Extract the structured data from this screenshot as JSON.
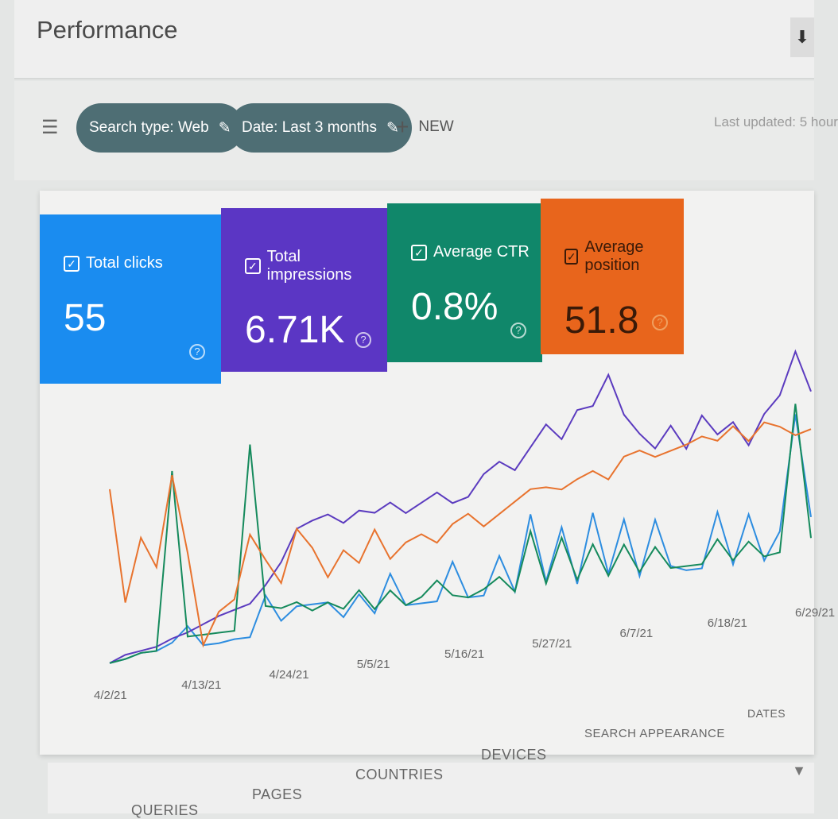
{
  "header": {
    "title": "Performance",
    "download_icon": "download-icon"
  },
  "filters": {
    "chips": [
      {
        "label": "Search type: Web",
        "icon": "pencil-icon"
      },
      {
        "label": "Date: Last 3 months",
        "icon": "pencil-icon"
      }
    ],
    "new_label": "NEW",
    "last_updated": "Last updated: 5 hour"
  },
  "metrics": [
    {
      "label": "Total clicks",
      "value": "55",
      "color": "#1a8cf0",
      "checked": true
    },
    {
      "label": "Total impressions",
      "value": "6.71K",
      "color": "#5b36c4",
      "checked": true
    },
    {
      "label": "Average CTR",
      "value": "0.8%",
      "color": "#10876a",
      "checked": true
    },
    {
      "label": "Average position",
      "value": "51.8",
      "color": "#e8651c",
      "checked": true
    }
  ],
  "tabs": [
    "QUERIES",
    "PAGES",
    "COUNTRIES",
    "DEVICES",
    "SEARCH APPEARANCE",
    "DATES"
  ],
  "chart_data": {
    "type": "line",
    "x_tick_labels": [
      "4/2/21",
      "4/13/21",
      "4/24/21",
      "5/5/21",
      "5/16/21",
      "5/27/21",
      "6/7/21",
      "6/18/21",
      "6/29/21"
    ],
    "grid": false,
    "legend": "none",
    "series": [
      {
        "name": "Total clicks",
        "color": "#2d8de0",
        "values": [
          2,
          3,
          5,
          5,
          8,
          15,
          5,
          5,
          6,
          6,
          25,
          12,
          18,
          18,
          18,
          10,
          20,
          10,
          28,
          12,
          12,
          12,
          30,
          12,
          12,
          30,
          12,
          48,
          15,
          40,
          12,
          45,
          15,
          40,
          12,
          38,
          15,
          12,
          12,
          38,
          12,
          35,
          12,
          25,
          80,
          30
        ]
      },
      {
        "name": "Total impressions",
        "color": "#5b3bbf",
        "values": [
          2,
          5,
          6,
          7,
          10,
          12,
          15,
          18,
          20,
          22,
          30,
          40,
          55,
          58,
          60,
          55,
          60,
          58,
          62,
          56,
          60,
          64,
          58,
          60,
          70,
          75,
          70,
          80,
          90,
          82,
          95,
          96,
          110,
          90,
          80,
          72,
          82,
          70,
          85,
          75,
          80,
          68,
          82,
          90,
          110,
          90
        ]
      },
      {
        "name": "Average CTR",
        "color": "#158a5c",
        "values": [
          2,
          3,
          5,
          5,
          90,
          10,
          10,
          10,
          10,
          98,
          20,
          18,
          20,
          15,
          18,
          14,
          22,
          12,
          20,
          12,
          15,
          22,
          14,
          12,
          15,
          20,
          12,
          40,
          14,
          35,
          14,
          30,
          14,
          28,
          14,
          25,
          14,
          14,
          14,
          25,
          14,
          22,
          14,
          15,
          85,
          20
        ]
      },
      {
        "name": "Average position",
        "color": "#e8732e",
        "values": [
          85,
          30,
          60,
          45,
          88,
          50,
          5,
          20,
          25,
          55,
          42,
          30,
          55,
          45,
          30,
          42,
          35,
          50,
          35,
          42,
          45,
          40,
          48,
          52,
          45,
          50,
          55,
          60,
          60,
          58,
          62,
          65,
          60,
          70,
          72,
          68,
          70,
          72,
          75,
          72,
          78,
          70,
          78,
          75,
          70,
          72
        ]
      }
    ]
  }
}
